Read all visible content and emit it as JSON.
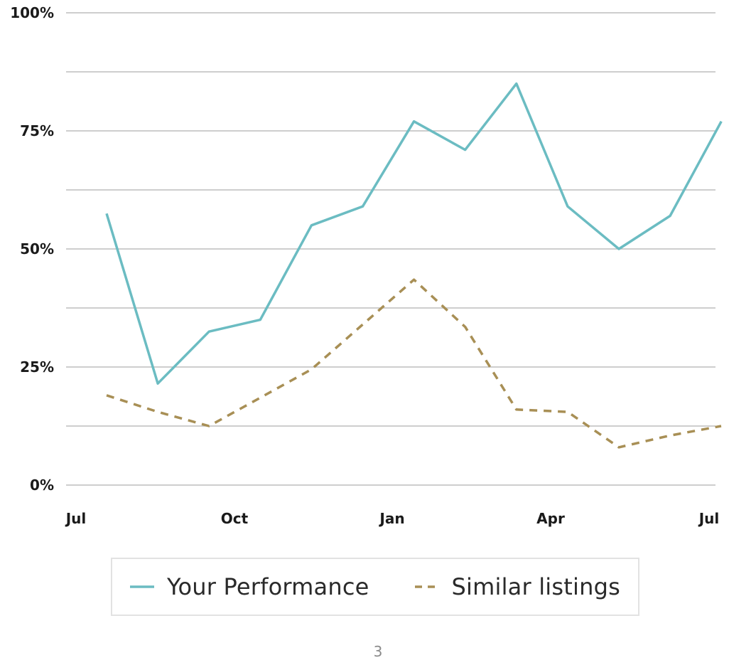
{
  "chart_data": {
    "type": "line",
    "title": "",
    "xlabel": "",
    "ylabel": "",
    "ylim": [
      0,
      100
    ],
    "y_ticks": [
      "0%",
      "25%",
      "50%",
      "75%",
      "100%"
    ],
    "x_tick_labels": [
      "Jul",
      "Oct",
      "Jan",
      "Apr",
      "Jul"
    ],
    "grid": true,
    "legend_position": "bottom",
    "x": [
      "2020-08",
      "2020-09",
      "2020-10",
      "2020-11",
      "2020-12",
      "2021-01",
      "2021-02",
      "2021-03",
      "2021-04",
      "2021-05",
      "2021-06",
      "2021-07",
      "2021-08"
    ],
    "series": [
      {
        "name": "Your Performance",
        "style": "solid",
        "color": "#6bbcc2",
        "values": [
          57.5,
          21.5,
          32.5,
          35,
          55,
          59,
          77,
          71,
          85,
          59,
          50,
          57,
          77
        ]
      },
      {
        "name": "Similar listings",
        "style": "dashed",
        "color": "#a88f55",
        "values": [
          19,
          15.5,
          12.5,
          18.5,
          24.5,
          34,
          43.5,
          33.5,
          16,
          15.5,
          8,
          10.5,
          12.5
        ]
      }
    ]
  },
  "page_number": "3"
}
